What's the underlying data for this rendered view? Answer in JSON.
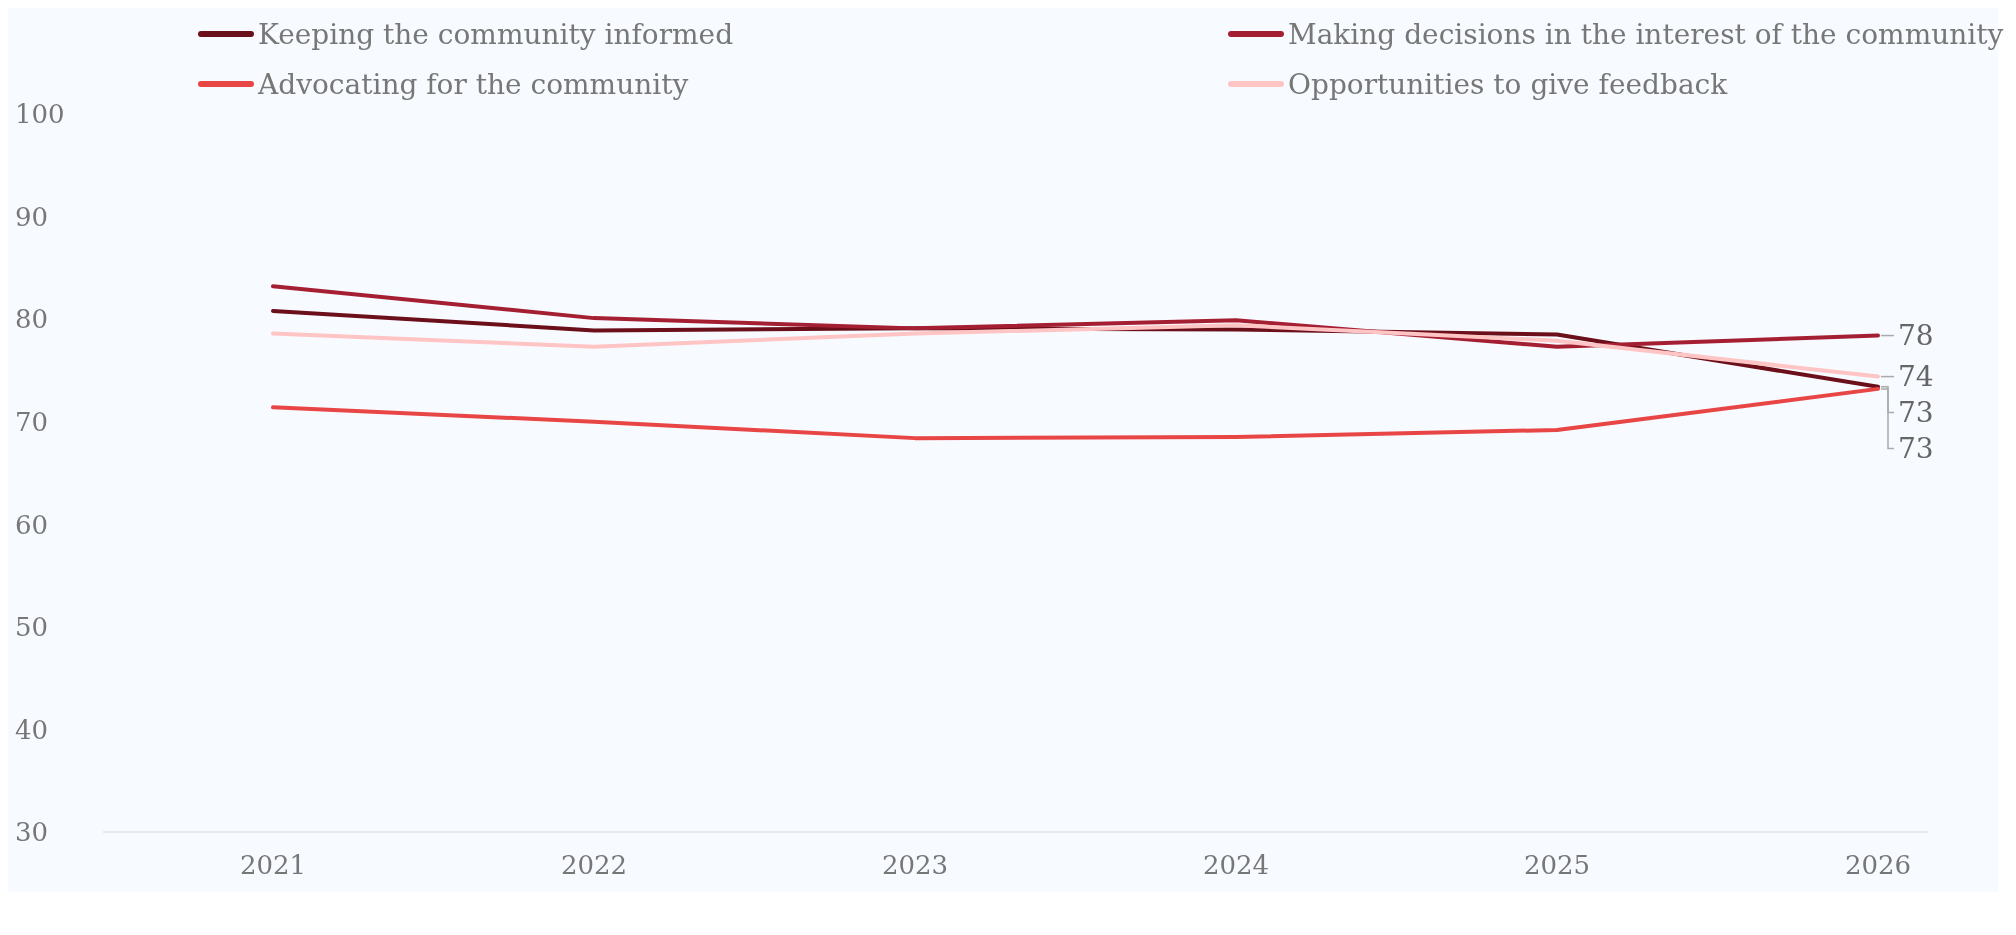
{
  "chart_data": {
    "type": "line",
    "categories": [
      "2021",
      "2022",
      "2023",
      "2024",
      "2025",
      "2026"
    ],
    "series": [
      {
        "name": "Keeping the community informed",
        "color": "#6b0f1a",
        "values": [
          80.8,
          78.9,
          79.1,
          79.0,
          78.5,
          73.4
        ],
        "value_labels": [
          null,
          null,
          null,
          null,
          null,
          "73"
        ]
      },
      {
        "name": "Making decisions in the interest of the community",
        "color": "#a51f33",
        "values": [
          83.2,
          80.1,
          79.1,
          79.9,
          77.3,
          78.4
        ],
        "value_labels": [
          null,
          null,
          null,
          null,
          null,
          "78"
        ]
      },
      {
        "name": "Advocating for the community",
        "color": "#e84545",
        "values": [
          71.4,
          70.0,
          68.4,
          68.5,
          69.2,
          73.2
        ],
        "value_labels": [
          null,
          null,
          null,
          null,
          null,
          "73"
        ]
      },
      {
        "name": "Opportunities to give feedback",
        "color": "#ffc4c4",
        "values": [
          78.6,
          77.3,
          78.6,
          79.4,
          77.9,
          74.4
        ],
        "value_labels": [
          null,
          null,
          null,
          null,
          null,
          "74"
        ]
      }
    ],
    "ylim": [
      30,
      100
    ],
    "yticks": [
      30,
      40,
      50,
      60,
      70,
      80,
      90,
      100
    ],
    "grid": false,
    "legend": "top",
    "marker": "none",
    "line_style": "solid"
  }
}
